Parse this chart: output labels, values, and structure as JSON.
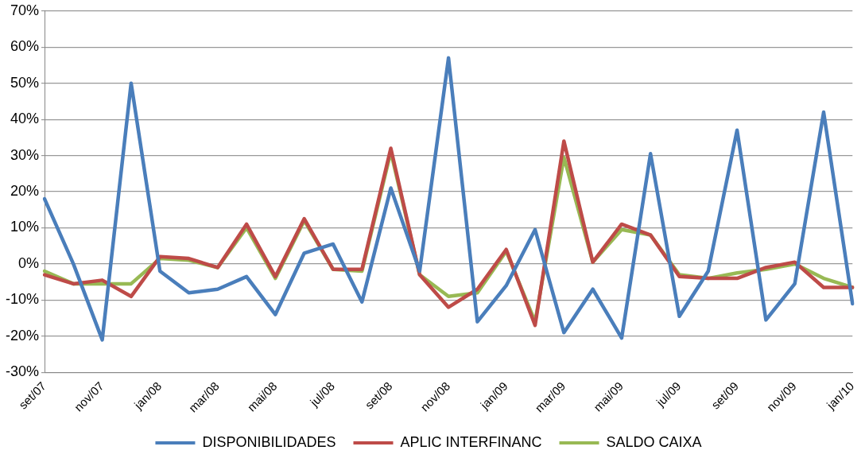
{
  "chart_data": {
    "type": "line",
    "categories": [
      "set/07",
      null,
      "nov/07",
      null,
      "jan/08",
      null,
      "mar/08",
      null,
      "mai/08",
      null,
      "jul/08",
      null,
      "set/08",
      null,
      "nov/08",
      null,
      "jan/09",
      null,
      "mar/09",
      null,
      "mai/09",
      null,
      "jul/09",
      null,
      "set/09",
      null,
      "nov/09",
      null,
      "jan/10"
    ],
    "series": [
      {
        "name": "DISPONIBILIDADES",
        "color": "#4a7ebb",
        "values": [
          18,
          0,
          -21,
          50,
          -2,
          -8,
          -7,
          -3.5,
          -14,
          3,
          5.5,
          -10.5,
          21,
          -2,
          57,
          -16,
          -6,
          9.5,
          -19,
          -7,
          -20.5,
          30.5,
          -14.5,
          -2,
          37,
          -15.5,
          -5.5,
          42,
          -11
        ]
      },
      {
        "name": "APLIC INTERFINANC",
        "color": "#be4b48",
        "values": [
          -3,
          -5.5,
          -4.5,
          -9,
          2,
          1.5,
          -1,
          11,
          -3.5,
          12.5,
          -1.5,
          -1.5,
          32,
          -3,
          -12,
          -7,
          4,
          -17,
          34,
          0.5,
          11,
          8,
          -3.5,
          -4,
          -4,
          -1,
          0.5,
          -6.5,
          -6.5
        ]
      },
      {
        "name": "SALDO CAIXA",
        "color": "#98b954",
        "values": [
          -2,
          -5.5,
          -5.5,
          -5.5,
          1.5,
          1,
          -1,
          10,
          -4,
          12,
          -1.5,
          -2,
          31,
          -3,
          -9,
          -8,
          3.5,
          -16,
          29.5,
          0.5,
          9.5,
          8,
          -3,
          -4,
          -2.5,
          -1.5,
          0,
          -4,
          -6.5
        ]
      }
    ],
    "ylim": [
      -30,
      70
    ],
    "yticks": [
      {
        "value": -30,
        "label": "-30%"
      },
      {
        "value": -20,
        "label": "-20%"
      },
      {
        "value": -10,
        "label": "-10%"
      },
      {
        "value": 0,
        "label": "0%"
      },
      {
        "value": 10,
        "label": "10%"
      },
      {
        "value": 20,
        "label": "20%"
      },
      {
        "value": 30,
        "label": "30%"
      },
      {
        "value": 40,
        "label": "40%"
      },
      {
        "value": 50,
        "label": "50%"
      },
      {
        "value": 60,
        "label": "60%"
      },
      {
        "value": 70,
        "label": "70%"
      }
    ],
    "grid": "y",
    "legend": "bottom",
    "marker": "none",
    "line_style": "solid"
  }
}
